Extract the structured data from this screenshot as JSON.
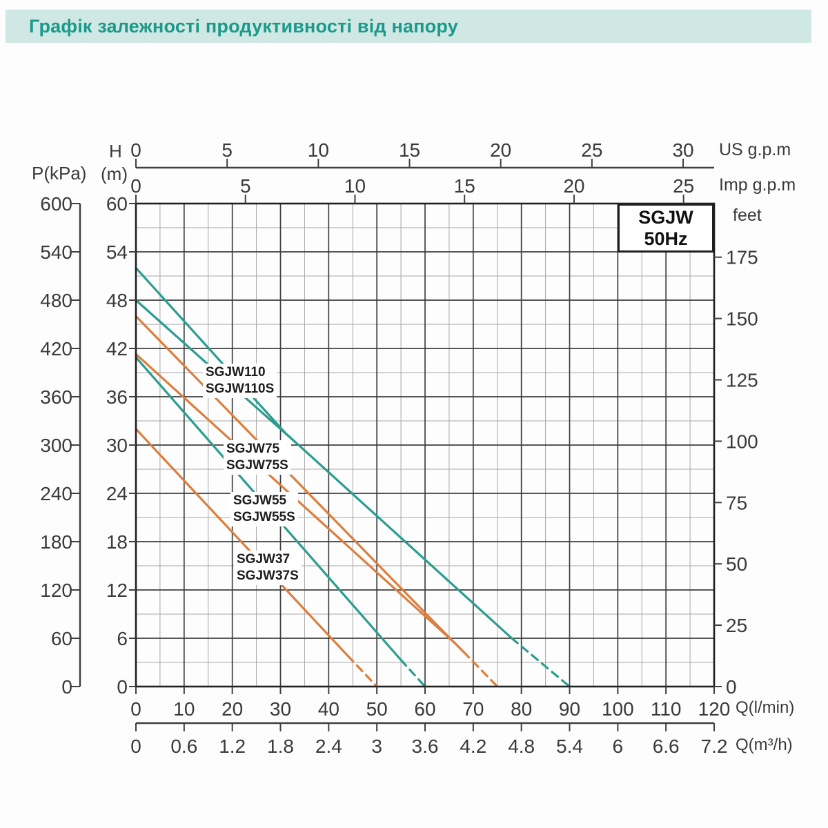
{
  "title": "Графік залежності продуктивності від напору",
  "model_box": {
    "series": "SGJW",
    "frequency": "50Hz"
  },
  "colors": {
    "banner_bg": "#cfe8e3",
    "banner_text": "#1b9a8c",
    "teal": "#2a9d8e",
    "orange": "#dd7e3c",
    "grid_major": "#3f3f3f",
    "grid_minor": "#a6a6a6",
    "frame": "#1f1f1f",
    "axis_text": "#3a3a3a"
  },
  "axes": {
    "us_gpm": {
      "label": "US g.p.m",
      "ticks": [
        0,
        5,
        10,
        15,
        20,
        25,
        30
      ]
    },
    "imp_gpm": {
      "label": "Imp g.p.m",
      "ticks": [
        0,
        5,
        10,
        15,
        20,
        25
      ]
    },
    "p_kpa": {
      "label": "P(kPa)",
      "ticks": [
        600,
        540,
        480,
        420,
        360,
        300,
        240,
        180,
        120,
        60,
        0
      ]
    },
    "h_m": {
      "label_top": "H",
      "label_bottom": "(m)",
      "ticks": [
        60,
        54,
        48,
        42,
        36,
        30,
        24,
        18,
        12,
        6,
        0
      ]
    },
    "feet": {
      "label": "feet",
      "ticks": [
        175,
        150,
        125,
        100,
        75,
        50,
        25,
        0
      ]
    },
    "q_lmin": {
      "label": "Q(l/min)",
      "ticks": [
        0,
        10,
        20,
        30,
        40,
        50,
        60,
        70,
        80,
        90,
        100,
        110,
        120
      ]
    },
    "q_m3h": {
      "label": "Q(m³/h)",
      "ticks": [
        "0",
        "0.6",
        "1.2",
        "1.8",
        "2.4",
        "3",
        "3.6",
        "4.2",
        "4.8",
        "5.4",
        "6",
        "6.6",
        "7.2"
      ]
    }
  },
  "chart_data": {
    "type": "line",
    "xlabel": "Q (l/min)",
    "ylabel": "H (m)",
    "xlim": [
      0,
      120
    ],
    "ylim": [
      0,
      60
    ],
    "grid": {
      "x_minor_step": 5,
      "x_major_step": 10,
      "y_minor_step": 3,
      "y_major_step": 6,
      "grid_on": true
    },
    "legend_box": "SGJW 50Hz (top right)",
    "series": [
      {
        "name": "SGJW110",
        "color": "teal",
        "solid": [
          [
            0,
            52
          ],
          [
            31,
            31.5
          ],
          [
            78,
            6
          ]
        ],
        "dashed": [
          [
            78,
            6
          ],
          [
            90,
            0
          ]
        ]
      },
      {
        "name": "SGJW110S",
        "color": "teal",
        "solid": [
          [
            0,
            48
          ],
          [
            33,
            30.4
          ]
        ],
        "dashed": []
      },
      {
        "name": "SGJW75",
        "color": "orange",
        "solid": [
          [
            0,
            46
          ],
          [
            64.5,
            6.4
          ],
          [
            68,
            4.3
          ]
        ],
        "dashed": [
          [
            68,
            4.3
          ],
          [
            75,
            0
          ]
        ]
      },
      {
        "name": "SGJW75S",
        "color": "orange",
        "solid": [
          [
            0,
            41.3
          ],
          [
            66,
            5.5
          ]
        ],
        "dashed": []
      },
      {
        "name": "SGJW55 / SGJW55S",
        "color": "teal",
        "solid": [
          [
            0,
            40.9
          ],
          [
            55,
            3.3
          ]
        ],
        "dashed": [
          [
            55,
            3.3
          ],
          [
            60,
            0
          ]
        ]
      },
      {
        "name": "SGJW37 / SGJW37S",
        "color": "orange",
        "solid": [
          [
            0,
            32
          ],
          [
            44,
            3.8
          ]
        ],
        "dashed": [
          [
            44,
            3.8
          ],
          [
            50,
            0
          ]
        ]
      }
    ],
    "curve_labels": [
      {
        "lines": [
          "SGJW110",
          "SGJW110S"
        ]
      },
      {
        "lines": [
          "SGJW75",
          "SGJW75S"
        ]
      },
      {
        "lines": [
          "SGJW55",
          "SGJW55S"
        ]
      },
      {
        "lines": [
          "SGJW37",
          "SGJW37S"
        ]
      }
    ]
  }
}
